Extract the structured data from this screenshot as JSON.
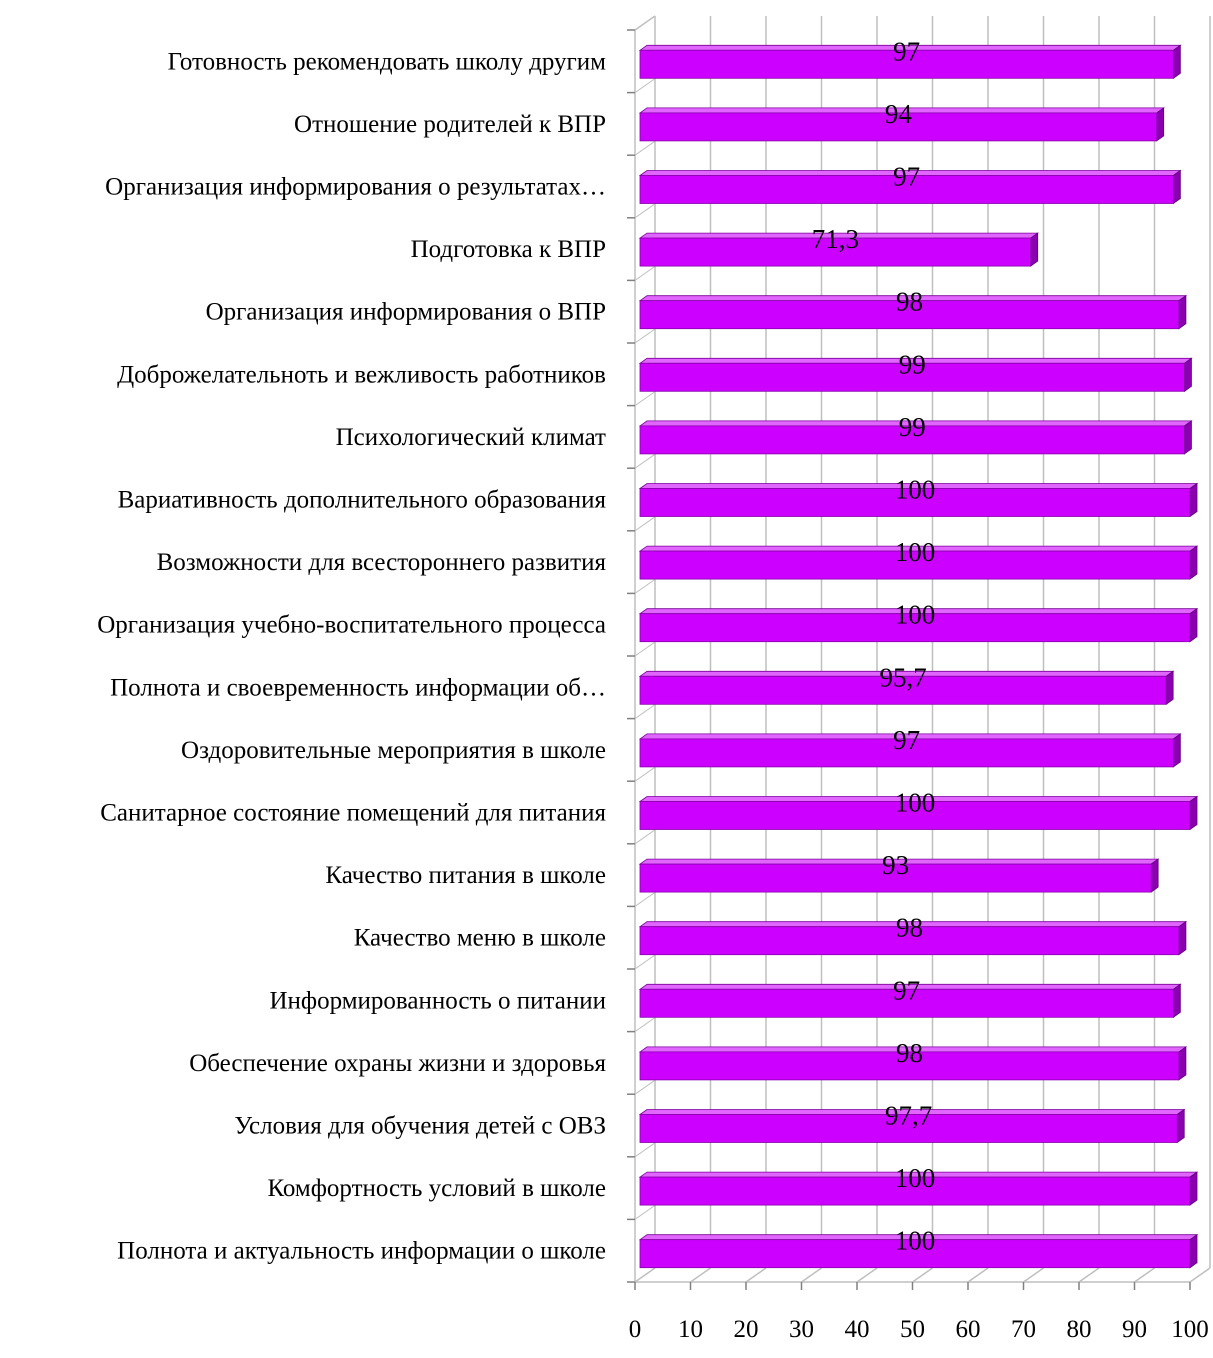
{
  "chart_data": {
    "type": "bar",
    "orientation": "horizontal",
    "three_d": true,
    "categories": [
      "Готовность рекомендовать школу другим",
      "Отношение родителей к ВПР",
      "Организация информирования о результатах…",
      "Подготовка к ВПР",
      "Организация информирования о ВПР",
      "Доброжелательноть и вежливость работников",
      "Психологический климат",
      "Вариативность дополнительного образования",
      "Возможности для всестороннего развития",
      "Организация учебно-воспитательного процесса",
      "Полнота и своевременность информации об…",
      "Оздоровительные мероприятия в школе",
      "Санитарное состояние помещений для питания",
      "Качество питания в школе",
      "Качество меню в школе",
      "Информированность о питании",
      "Обеспечение охраны жизни и здоровья",
      "Условия для обучения детей с ОВЗ",
      "Комфортность условий в школе",
      "Полнота и актуальность информации о школе"
    ],
    "values": [
      97,
      94,
      97,
      71.3,
      98,
      99,
      99,
      100,
      100,
      100,
      95.7,
      97,
      100,
      93,
      98,
      97,
      98,
      97.7,
      100,
      100
    ],
    "data_labels": [
      "97",
      "94",
      "97",
      "71,3",
      "98",
      "99",
      "99",
      "100",
      "100",
      "100",
      "95,7",
      "97",
      "100",
      "93",
      "98",
      "97",
      "98",
      "97,7",
      "100",
      "100"
    ],
    "x_ticks": [
      "0",
      "10",
      "20",
      "30",
      "40",
      "50",
      "60",
      "70",
      "80",
      "90",
      "100"
    ],
    "xlim": [
      0,
      100
    ],
    "grid": true,
    "bar_color": "#cc00ff",
    "bar_side_color": "#8a00b0",
    "bar_top_color": "#e066ff",
    "grid_color": "#bfbfbf"
  }
}
